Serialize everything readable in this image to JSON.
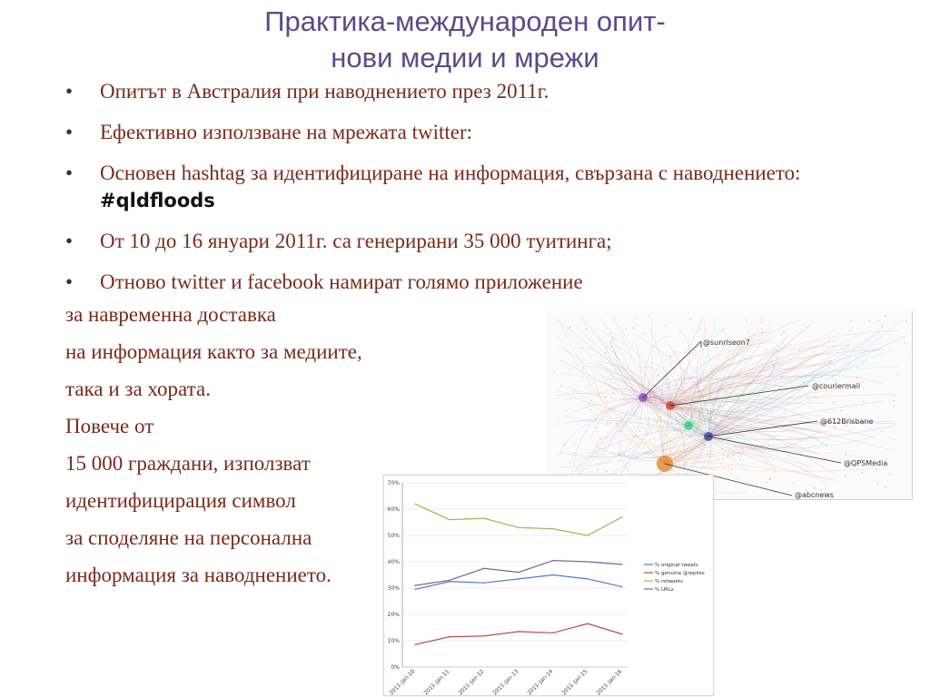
{
  "slide": {
    "title_line1": "Практика-международен опит-",
    "title_line2": "нови медии и мрежи",
    "bullets": [
      {
        "text": "Опитът в Австралия при наводнението през 2011г."
      },
      {
        "text": "Ефективно използване на мрежата twitter:"
      },
      {
        "text": "Основен hashtag за идентифициране на информация, свързана с наводнението: ",
        "hashtag": "#qldfloods"
      },
      {
        "text": "От 10 до 16 януари 2011г. са генерирани 35 000 туитинга;"
      },
      {
        "text": "Отново twitter и facebook намират голямо приложение"
      }
    ],
    "paragraph_lines": [
      "за навременна доставка",
      "на информация както за медиите,",
      "така и за хората.",
      "Повече от",
      "15 000 граждани, използват",
      "идентифицирация символ",
      "за споделяне на персонална",
      "информация за наводнението."
    ],
    "text_color": "#7a2a1a",
    "title_color": "#5b4a8a"
  },
  "network_graph": {
    "labels": [
      "@sunriseon7",
      "@couriermail",
      "@612Brisbane",
      "@QPSMedia",
      "@abcnews"
    ],
    "cluster_colors": [
      "#8e44ad",
      "#c0392b",
      "#2ecc71",
      "#2c3e9e",
      "#e67e22"
    ]
  },
  "chart_data": {
    "type": "line",
    "categories": [
      "2011-Jan-10",
      "2011-Jan-11",
      "2011-Jan-12",
      "2011-Jan-13",
      "2011-Jan-14",
      "2011-Jan-15",
      "2011-Jan-16"
    ],
    "yticks": [
      "0%",
      "10%",
      "20%",
      "30%",
      "40%",
      "50%",
      "60%",
      "70%"
    ],
    "ylim": [
      0,
      70
    ],
    "series": [
      {
        "name": "% original tweets",
        "color": "#4a7ebb",
        "values": [
          29.5,
          32.5,
          32,
          33.5,
          35,
          33.5,
          30.5
        ]
      },
      {
        "name": "% genuine @replies",
        "color": "#be4b48",
        "values": [
          8.5,
          11.5,
          11.8,
          13.5,
          13,
          16.5,
          12.5
        ]
      },
      {
        "name": "% retweets",
        "color": "#98b954",
        "values": [
          62,
          56,
          56.5,
          53,
          52.5,
          50,
          57
        ]
      },
      {
        "name": "% URLs",
        "color": "#7d60a0",
        "values": [
          31,
          33,
          37.5,
          36,
          40.5,
          40,
          39
        ]
      }
    ],
    "grid": true,
    "legend_position": "right"
  }
}
